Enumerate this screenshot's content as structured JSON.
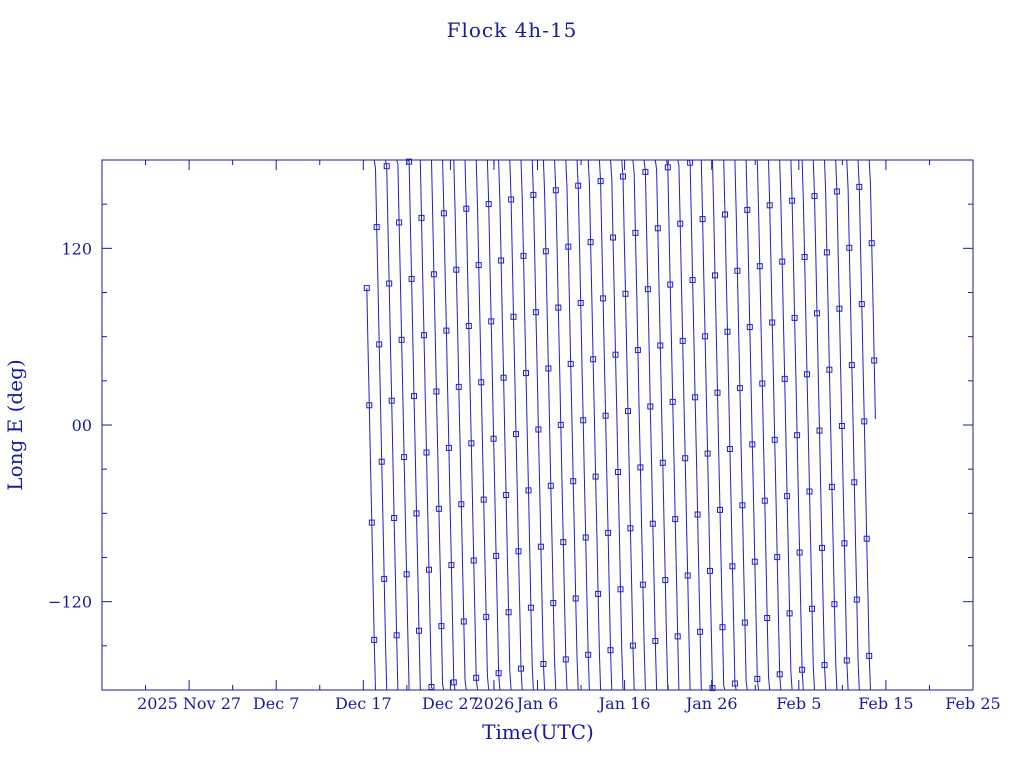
{
  "chart_data": {
    "type": "line",
    "title": "Flock 4h-15",
    "xlabel": "Time(UTC)",
    "ylabel": "Long E (deg)",
    "colors": {
      "axis": "#1a1aa0",
      "series": "#2020c0"
    },
    "x_range_days": [
      0,
      100
    ],
    "x_range_labels": [
      "2025 Nov 17",
      "2026 Feb 25"
    ],
    "ylim": [
      -180,
      180
    ],
    "x_ticks": [
      {
        "day": 10,
        "label": "2025 Nov 27"
      },
      {
        "day": 20,
        "label": "Dec  7"
      },
      {
        "day": 30,
        "label": "Dec 17"
      },
      {
        "day": 40,
        "label": "Dec 27"
      },
      {
        "day": 45,
        "label": "2026"
      },
      {
        "day": 50,
        "label": "Jan  6"
      },
      {
        "day": 60,
        "label": "Jan 16"
      },
      {
        "day": 70,
        "label": "Jan 26"
      },
      {
        "day": 80,
        "label": "Feb  5"
      },
      {
        "day": 90,
        "label": "Feb 15"
      },
      {
        "day": 100,
        "label": "Feb 25"
      }
    ],
    "y_ticks": [
      {
        "value": 120,
        "label": "120"
      },
      {
        "value": 0,
        "label": "00"
      },
      {
        "value": -120,
        "label": "−120"
      }
    ],
    "series": [
      {
        "marker": "square",
        "data_start_day": 30.4,
        "data_end_day": 88.8,
        "start_longitude": 93,
        "end_longitude": 4,
        "drift_deg_per_day": -280,
        "wrap": "longitude jumps +360 when passing -180",
        "samples_per_day": 7
      }
    ]
  }
}
